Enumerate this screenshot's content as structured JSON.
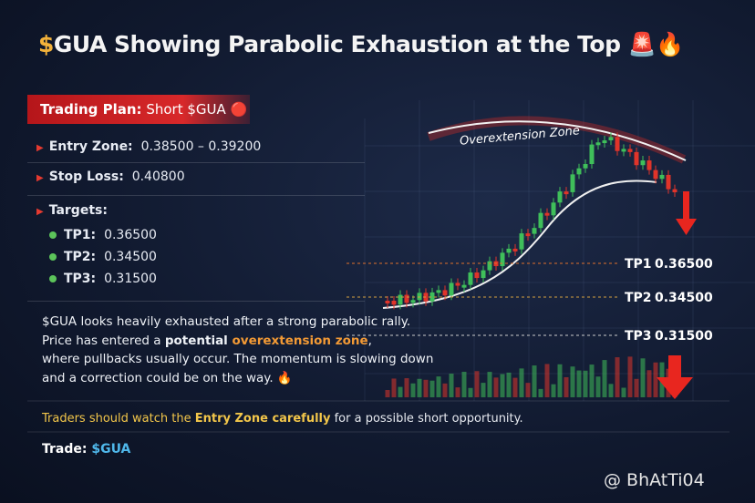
{
  "header": {
    "title": "$GUA Showing Parabolic Exhaustion at the Top 🚨🔥"
  },
  "plan": {
    "label": "Trading Plan:",
    "value": "Short $GUA 🔴",
    "entry": {
      "label": "Entry Zone:",
      "value": "0.38500 – 0.39200"
    },
    "stop": {
      "label": "Stop Loss:",
      "value": "0.40800"
    },
    "targets": {
      "title": "Targets:",
      "items": [
        {
          "label": "TP1:",
          "value": "0.36500"
        },
        {
          "label": "TP2:",
          "value": "0.34500"
        },
        {
          "label": "TP3:",
          "value": "0.31500"
        }
      ]
    }
  },
  "description": {
    "line1": "$GUA looks heavily exhausted after a strong parabolic rally.",
    "line2": {
      "start": "Price has entered a ",
      "bold": "potential ",
      "highlight": "overextension zone",
      "end": ","
    },
    "line3": "where pullbacks usually occur. The momentum is slowing down",
    "line4": "and a correction could be on the way. 🔥"
  },
  "chart": {
    "zone": "Overextension Zone",
    "levels": [
      {
        "label": "TP1",
        "value": "0.36500"
      },
      {
        "label": "TP2",
        "value": "0.34500"
      },
      {
        "label": "TP3",
        "value": "0.31500"
      }
    ]
  },
  "note": {
    "start": "Traders should watch the ",
    "bold": "Entry Zone carefully",
    "end": " for a possible short opportunity."
  },
  "trade": {
    "label": "Trade:",
    "value": "$GUA"
  },
  "watermark": "@ BhAtTi04"
}
